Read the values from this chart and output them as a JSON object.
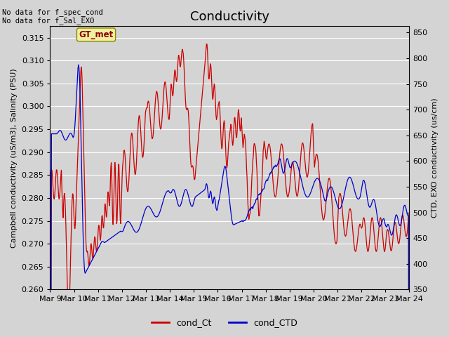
{
  "title": "Conductivity",
  "ylabel_left": "Campbell conductivity (uS/m3), Salinity (PSU)",
  "ylabel_right": "CTD, EXO conductivity (us/cm)",
  "ylim_left": [
    0.26,
    0.3175
  ],
  "ylim_right": [
    350,
    862.5
  ],
  "bg_color": "#d4d4d4",
  "annotation_text": "No data for f_spec_cond\nNo data for f_Sal_EXO",
  "gt_met_label": "GT_met",
  "legend_labels": [
    "cond_Ct",
    "cond_CTD"
  ],
  "xtick_labels": [
    "Mar 9",
    "Mar 10",
    "Mar 11",
    "Mar 12",
    "Mar 13",
    "Mar 14",
    "Mar 15",
    "Mar 16",
    "Mar 17",
    "Mar 18",
    "Mar 19",
    "Mar 20",
    "Mar 21",
    "Mar 22",
    "Mar 23",
    "Mar 24"
  ],
  "yticks_left": [
    0.26,
    0.265,
    0.27,
    0.275,
    0.28,
    0.285,
    0.29,
    0.295,
    0.3,
    0.305,
    0.31,
    0.315
  ],
  "yticks_right": [
    350,
    400,
    450,
    500,
    550,
    600,
    650,
    700,
    750,
    800,
    850
  ],
  "title_fontsize": 13,
  "label_fontsize": 8,
  "tick_fontsize": 8,
  "red_color": "#cc0000",
  "blue_color": "#0000cc"
}
